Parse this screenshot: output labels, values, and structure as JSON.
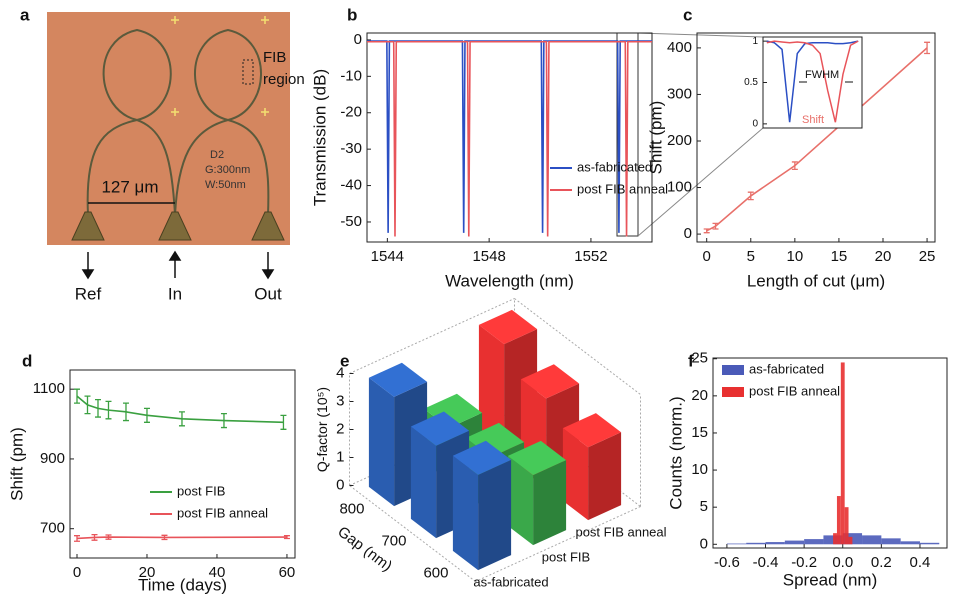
{
  "image_panel": {
    "label": "a",
    "annotations": [
      "FIB",
      "region",
      "127 μm",
      "D2",
      "G:300nm",
      "W:50nm"
    ],
    "ports": [
      "Ref",
      "In",
      "Out"
    ]
  },
  "chart_data": [
    {
      "label": "b",
      "type": "line",
      "xlabel": "Wavelength (nm)",
      "ylabel": "Transmission (dB)",
      "xlim": [
        1543.2,
        1554.4
      ],
      "xticks": [
        1544,
        1548,
        1552
      ],
      "ylim": [
        -55.5,
        1.9
      ],
      "yticks": [
        0,
        -10,
        -20,
        -30,
        -40,
        -50
      ],
      "legend": "lower right",
      "series": [
        {
          "name": "as-fabricated",
          "color": "#2b4fc4",
          "x": [
            1543.2,
            1543.98,
            1544.03,
            1544.08,
            1546.95,
            1547.0,
            1547.05,
            1550.05,
            1550.1,
            1550.15,
            1553.05,
            1553.1,
            1553.15,
            1554.4
          ],
          "values": [
            -0.3,
            -0.3,
            -53,
            -0.3,
            -0.3,
            -53,
            -0.3,
            -0.3,
            -53,
            -0.3,
            -0.3,
            -53,
            -0.3,
            -0.3
          ]
        },
        {
          "name": "post FIB anneal",
          "color": "#e8545a",
          "x": [
            1543.2,
            1544.25,
            1544.3,
            1544.35,
            1547.15,
            1547.2,
            1547.25,
            1550.25,
            1550.3,
            1550.35,
            1553.35,
            1553.4,
            1553.45,
            1554.4
          ],
          "values": [
            -0.5,
            -0.5,
            -54,
            -0.5,
            -0.5,
            -54,
            -0.5,
            -0.5,
            -54,
            -0.5,
            -0.5,
            -54,
            -0.5,
            -0.5
          ]
        }
      ]
    },
    {
      "label": "c",
      "type": "line",
      "xlabel": "Length of cut (μm)",
      "ylabel": "Shift (pm)",
      "xlim": [
        -1.1,
        25.9
      ],
      "xticks": [
        0,
        5,
        10,
        15,
        20,
        25
      ],
      "ylim": [
        -17,
        432
      ],
      "yticks": [
        0,
        100,
        200,
        300,
        400
      ],
      "series": [
        {
          "color": "#e8706a",
          "x": [
            0,
            1,
            5,
            10,
            25
          ],
          "values": [
            7,
            17,
            82,
            147,
            400
          ],
          "errors": [
            4,
            6,
            8,
            8,
            12
          ]
        }
      ]
    },
    {
      "type": "line",
      "ylim": [
        -0.05,
        1.05
      ],
      "yticks": [
        0,
        0.5,
        1
      ],
      "annotations": [
        "FWHM",
        "Shift"
      ],
      "categories": [
        null,
        null,
        null,
        null,
        null,
        null,
        null,
        null,
        null,
        null,
        null,
        null,
        null
      ],
      "series": [
        {
          "color": "#2b4fc4",
          "values": [
            1,
            0.98,
            0.9,
            0.02,
            0.85,
            0.97,
            0.98,
            0.98,
            0.98,
            0.97,
            0.97,
            0.98,
            1
          ]
        },
        {
          "color": "#e8545a",
          "values": [
            0.98,
            1,
            0.99,
            0.98,
            0.99,
            0.98,
            0.95,
            0.85,
            0.4,
            0.02,
            0.6,
            0.95,
            1
          ]
        }
      ]
    },
    {
      "label": "d",
      "type": "line",
      "xlabel": "Time (days)",
      "ylabel": "Shift (pm)",
      "xlim": [
        -2,
        62.3
      ],
      "xticks": [
        0,
        20,
        40,
        60
      ],
      "ylim": [
        616,
        1155
      ],
      "yticks": [
        700,
        900,
        1100
      ],
      "legend": "lower center",
      "series": [
        {
          "name": "post FIB",
          "color": "#3aa040",
          "x": [
            0,
            3,
            6,
            9,
            14,
            20,
            30,
            42,
            59
          ],
          "values": [
            1080,
            1055,
            1045,
            1040,
            1035,
            1025,
            1015,
            1010,
            1005
          ],
          "errors": [
            20,
            25,
            25,
            25,
            25,
            20,
            20,
            20,
            20
          ]
        },
        {
          "name": "post FIB anneal",
          "color": "#e8545a",
          "x": [
            0,
            5,
            9,
            25,
            60
          ],
          "values": [
            672,
            675,
            676,
            675,
            676
          ],
          "errors": [
            8,
            8,
            6,
            6,
            4
          ]
        }
      ]
    },
    {
      "label": "e",
      "type": "bar3d",
      "xlabel": "Gap (nm)",
      "ylabel": "Q-factor (10⁵)",
      "ylim": [
        0,
        4
      ],
      "yticks": [
        0,
        1,
        2,
        3,
        4
      ],
      "categories": [
        600,
        700,
        800
      ],
      "series": [
        {
          "name": "as-fabricated",
          "color": "#2a5db0",
          "values": [
            3.4,
            3.3,
            3.9
          ]
        },
        {
          "name": "post FIB",
          "color": "#3aa84a",
          "values": [
            2.5,
            2.0,
            1.9
          ]
        },
        {
          "name": "post FIB anneal",
          "color": "#e83030",
          "values": [
            2.6,
            3.2,
            4.0
          ]
        }
      ]
    },
    {
      "label": "f",
      "type": "histogram",
      "xlabel": "Spread (nm)",
      "ylabel": "Counts (norm.)",
      "xlim": [
        -0.672,
        0.54
      ],
      "xticks": [
        -0.6,
        -0.4,
        -0.2,
        {
          "value": 0,
          "label": "0.0"
        },
        0.2,
        0.4
      ],
      "ylim": [
        -0.5,
        25.1
      ],
      "yticks": [
        0,
        5,
        10,
        15,
        20,
        25
      ],
      "legend": "upper left",
      "series": [
        {
          "name": "as-fabricated",
          "color": "#4a5ab8",
          "bins": [
            -0.6,
            -0.5,
            -0.4,
            -0.3,
            -0.2,
            -0.1,
            0,
            0.1,
            0.2,
            0.3,
            0.4,
            0.5
          ],
          "values": [
            0.1,
            0.2,
            0.3,
            0.5,
            0.7,
            1.2,
            1.5,
            1.2,
            0.8,
            0.4,
            0.2
          ]
        },
        {
          "name": "post FIB anneal",
          "color": "#e83030",
          "bins": [
            -0.05,
            -0.03,
            -0.01,
            0.01,
            0.03,
            0.05
          ],
          "values": [
            1.5,
            6.5,
            24.5,
            5,
            1
          ]
        }
      ]
    }
  ]
}
